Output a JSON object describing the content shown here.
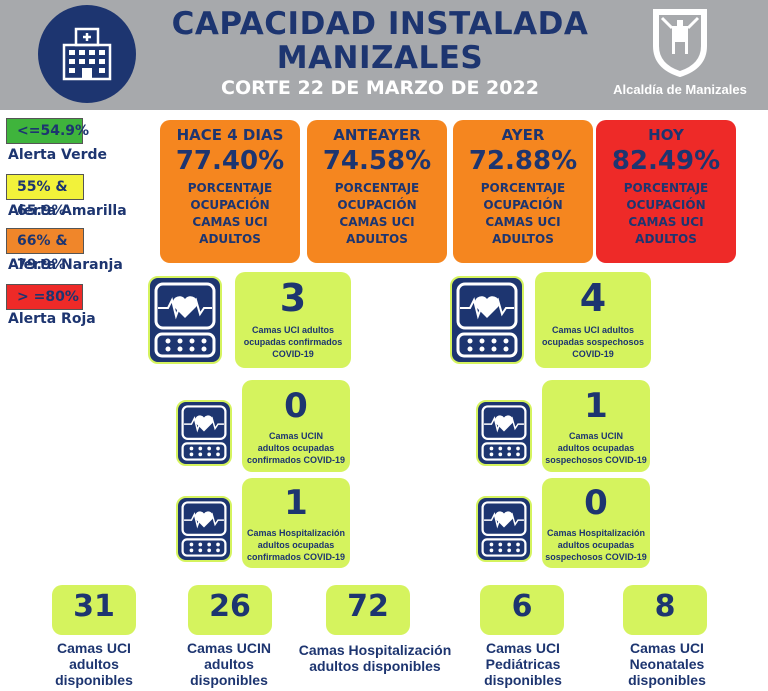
{
  "header": {
    "title_line1": "CAPACIDAD INSTALADA",
    "title_line2": "MANIZALES",
    "subtitle": "CORTE 22 DE MARZO DE 2022",
    "brand": "Alcaldía de Manizales"
  },
  "legend": [
    {
      "range": "<=54.9%",
      "label": "Alerta Verde",
      "color": "#3fb43c"
    },
    {
      "range": "55% & 65.9%",
      "label": "Alerta Amarilla",
      "color": "#f2f23a"
    },
    {
      "range": "66% & 79.9%",
      "label": "Alerta Naranja",
      "color": "#f0862a"
    },
    {
      "range": "> =80%",
      "label": "Alerta Roja",
      "color": "#ee2a28"
    }
  ],
  "occupancy": [
    {
      "head": "HACE 4 DIAS",
      "pct": "77.40%",
      "line1": "PORCENTAJE",
      "line2": "OCUPACIÓN",
      "line3": "CAMAS UCI",
      "line4": "ADULTOS",
      "color": "#f5861f"
    },
    {
      "head": "ANTEAYER",
      "pct": "74.58%",
      "line1": "PORCENTAJE",
      "line2": "OCUPACIÓN",
      "line3": "CAMAS UCI",
      "line4": "ADULTOS",
      "color": "#f5861f"
    },
    {
      "head": "AYER",
      "pct": "72.88%",
      "line1": "PORCENTAJE",
      "line2": "OCUPACIÓN",
      "line3": "CAMAS UCI",
      "line4": "ADULTOS",
      "color": "#f5861f"
    },
    {
      "head": "HOY",
      "pct": "82.49%",
      "line1": "PORCENTAJE",
      "line2": "OCUPACIÓN",
      "line3": "CAMAS UCI",
      "line4": "ADULTOS",
      "color": "#ee2a28"
    }
  ],
  "stats": {
    "uci_conf": {
      "num": "3",
      "l1": "Camas UCI adultos",
      "l2": "ocupadas confirmados",
      "l3": "COVID-19"
    },
    "uci_sosp": {
      "num": "4",
      "l1": "Camas UCI adultos",
      "l2": "ocupadas sospechosos",
      "l3": "COVID-19"
    },
    "ucin_conf": {
      "num": "0",
      "l1": "Camas  UCIN",
      "l2": "adultos ocupadas",
      "l3": "confirmados COVID-19"
    },
    "ucin_sosp": {
      "num": "1",
      "l1": "Camas  UCIN",
      "l2": "adultos ocupadas",
      "l3": "sospechosos COVID-19"
    },
    "hosp_conf": {
      "num": "1",
      "l1": "Camas  Hospitalización",
      "l2": "adultos ocupadas",
      "l3": "confirmados COVID-19"
    },
    "hosp_sosp": {
      "num": "0",
      "l1": "Camas  Hospitalización",
      "l2": "adultos ocupadas",
      "l3": "sospechosos COVID-19"
    }
  },
  "available": [
    {
      "num": "31",
      "l1": "Camas UCI",
      "l2": "adultos",
      "l3": "disponibles"
    },
    {
      "num": "26",
      "l1": "Camas UCIN",
      "l2": "adultos",
      "l3": "disponibles"
    },
    {
      "num": "72",
      "l1": "Camas  Hospitalización",
      "l2": "adultos disponibles",
      "l3": ""
    },
    {
      "num": "6",
      "l1": "Camas  UCI",
      "l2": "Pediátricas",
      "l3": "disponibles"
    },
    {
      "num": "8",
      "l1": "Camas  UCI",
      "l2": "Neonatales",
      "l3": "disponibles"
    }
  ]
}
